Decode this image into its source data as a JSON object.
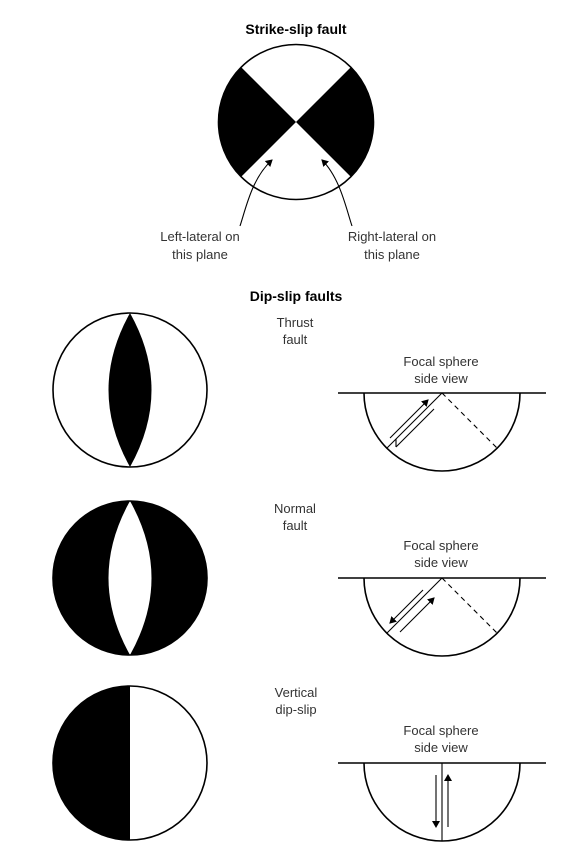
{
  "strike_slip": {
    "title": "Strike-slip fault",
    "label_left_line1": "Left-lateral on",
    "label_left_line2": "this plane",
    "label_right_line1": "Right-lateral on",
    "label_right_line2": "this plane"
  },
  "dip_slip": {
    "title": "Dip-slip faults",
    "thrust": {
      "line1": "Thrust",
      "line2": "fault"
    },
    "normal": {
      "line1": "Normal",
      "line2": "fault"
    },
    "vertical": {
      "line1": "Vertical",
      "line2": "dip-slip"
    },
    "side_view_line1": "Focal sphere",
    "side_view_line2": "side view"
  },
  "colors": {
    "ink": "#000000",
    "paper": "#ffffff",
    "text": "#333333"
  }
}
